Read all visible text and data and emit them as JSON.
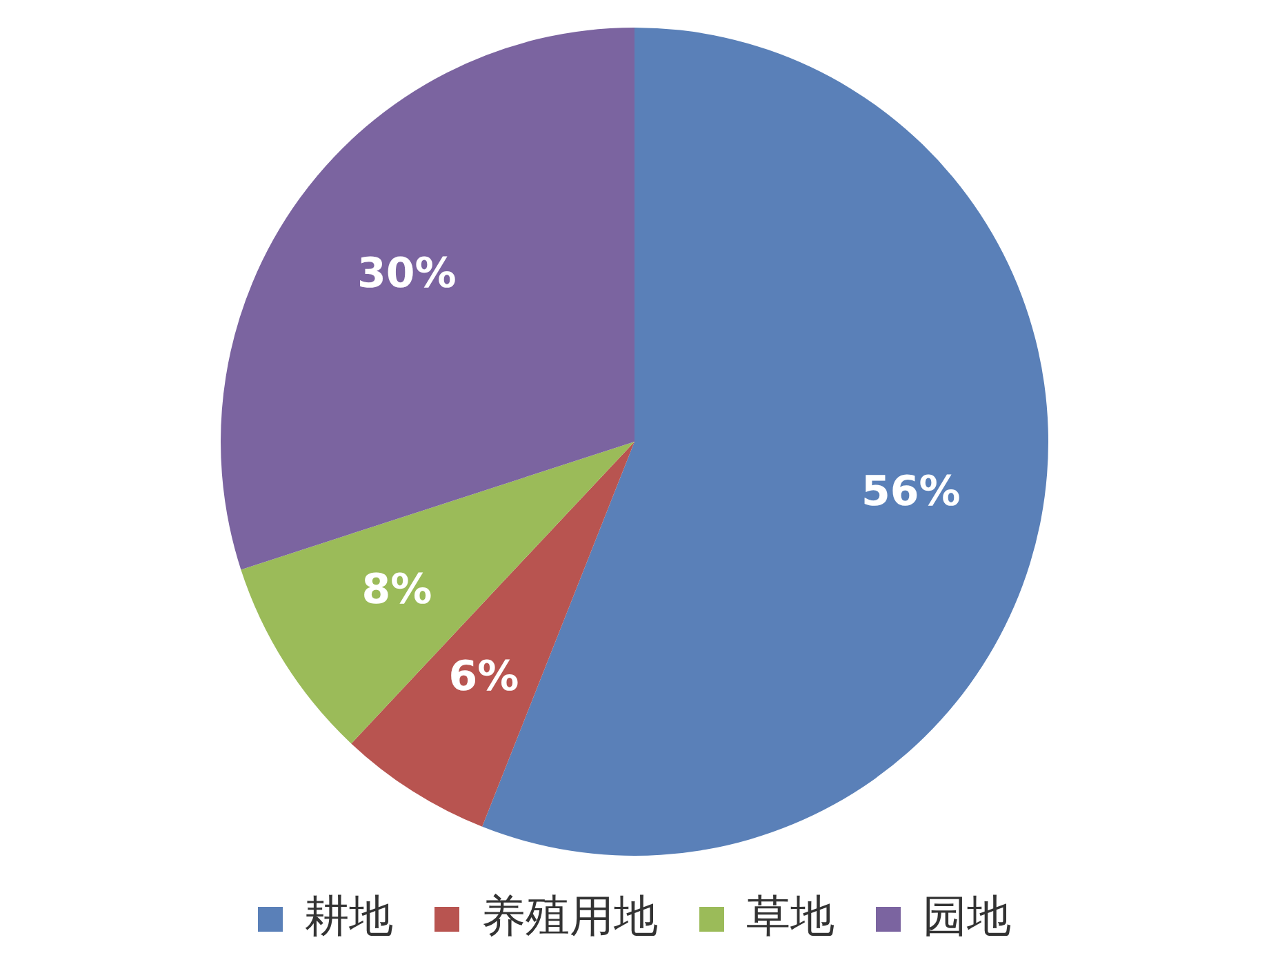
{
  "chart_data": {
    "type": "pie",
    "categories": [
      "耕地",
      "养殖用地",
      "草地",
      "园地"
    ],
    "values": [
      56,
      6,
      8,
      30
    ],
    "colors": [
      "#5a80b8",
      "#b85450",
      "#9bbb59",
      "#7b64a0"
    ],
    "value_labels": [
      "56%",
      "6%",
      "8%",
      "30%"
    ],
    "legend": "bottom"
  }
}
